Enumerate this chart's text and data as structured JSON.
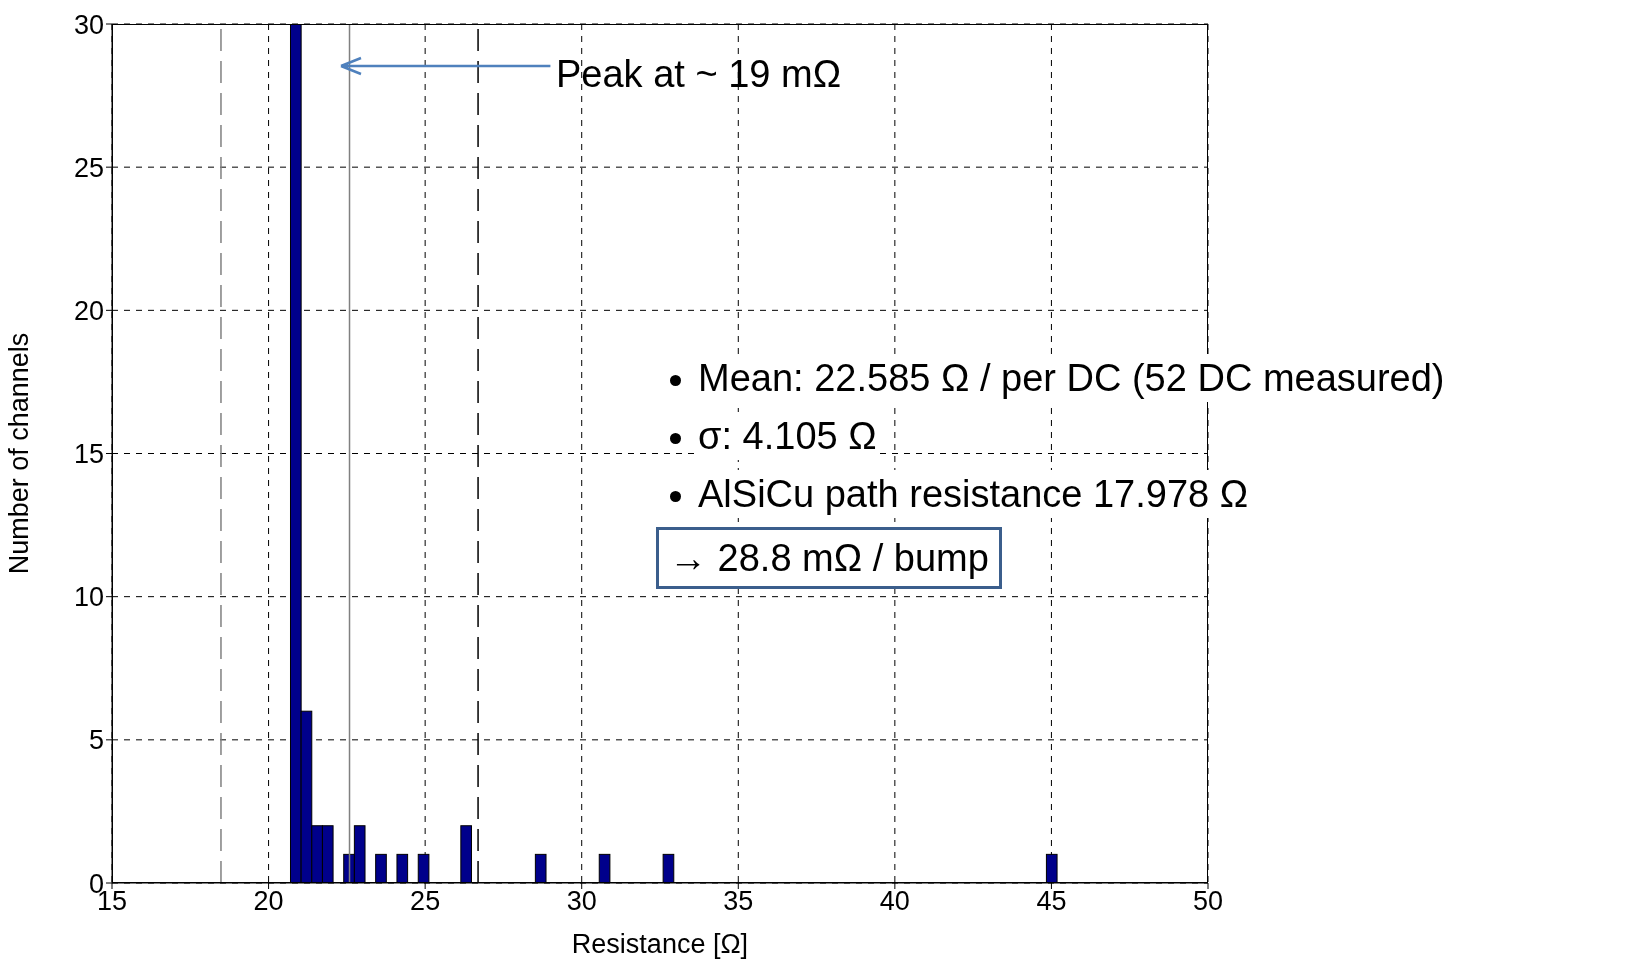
{
  "chart_data": {
    "type": "histogram",
    "xlabel": "Resistance [Ω]",
    "ylabel": "Number of channels",
    "bins": [
      20.7,
      21.04,
      21.38,
      21.72,
      22.06,
      22.4,
      22.74,
      23.08,
      23.42,
      23.76,
      24.1,
      24.44,
      24.78,
      25.12,
      25.46,
      25.8,
      26.14,
      26.48,
      26.82,
      27.16,
      27.5,
      27.84,
      28.18,
      28.52,
      28.86,
      29.2,
      29.54,
      29.88,
      30.22,
      30.56,
      30.9,
      31.24,
      31.58,
      31.92,
      32.26,
      32.6,
      32.94,
      33.28,
      33.62,
      33.96,
      34.3,
      34.64,
      34.98,
      35.32,
      35.66,
      36,
      36.34,
      36.68,
      37.02,
      37.36,
      37.7,
      38.04,
      38.38,
      38.72,
      39.06,
      39.4,
      39.74,
      40.08,
      40.42,
      40.76,
      41.1,
      41.44,
      41.78,
      42.12,
      42.46,
      42.8,
      43.14,
      43.48,
      43.82,
      44.16,
      44.5,
      44.84,
      45.18
    ],
    "values": [
      30,
      6,
      2,
      2,
      0,
      1,
      2,
      0,
      1,
      0,
      1,
      0,
      1,
      0,
      0,
      0,
      2,
      0,
      0,
      0,
      0,
      0,
      0,
      1,
      0,
      0,
      0,
      0,
      0,
      1,
      0,
      0,
      0,
      0,
      0,
      1,
      0,
      0,
      0,
      0,
      0,
      0,
      0,
      0,
      0,
      0,
      0,
      0,
      0,
      0,
      0,
      0,
      0,
      0,
      0,
      0,
      0,
      0,
      0,
      0,
      0,
      0,
      0,
      0,
      0,
      0,
      0,
      0,
      0,
      0,
      0,
      1
    ],
    "color": "#00008b",
    "xlim": [
      15,
      50
    ],
    "xticks": [
      15,
      20,
      25,
      30,
      35,
      40,
      45,
      50
    ],
    "ylim": [
      0,
      30
    ],
    "yticks": [
      0,
      5,
      10,
      15,
      20,
      25,
      30
    ],
    "grid": true,
    "ref_lines": [
      {
        "axis": "x",
        "value": 18.48,
        "color": "#808080",
        "line_style": "dashed"
      },
      {
        "axis": "x",
        "value": 22.585,
        "color": "#808080",
        "line_style": "solid"
      },
      {
        "axis": "x",
        "value": 26.69,
        "color": "#000000",
        "line_style": "dashed"
      }
    ],
    "annotations": [
      "Peak at ~ 19 mΩ",
      "Mean: 22.585 Ω / per DC (52 DC measured)",
      "σ: 4.105 Ω",
      "AlSiCu path resistance 17.978 Ω",
      "→ 28.8 mΩ / bump"
    ]
  }
}
